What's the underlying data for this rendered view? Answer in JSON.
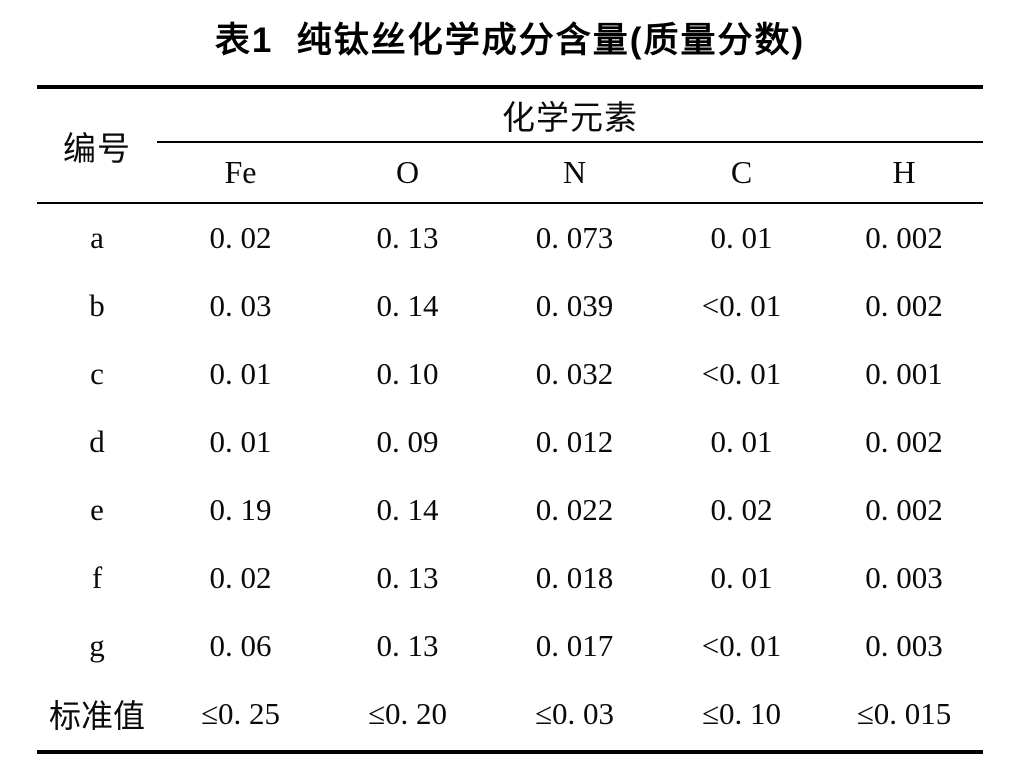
{
  "title": "表1  纯钛丝化学成分含量(质量分数)",
  "table": {
    "id_header": "编号",
    "group_header": "化学元素",
    "columns": [
      "Fe",
      "O",
      "N",
      "C",
      "H"
    ],
    "rows": [
      {
        "label": "a",
        "values": [
          "0. 02",
          "0. 13",
          "0. 073",
          "0. 01",
          "0. 002"
        ]
      },
      {
        "label": "b",
        "values": [
          "0. 03",
          "0. 14",
          "0. 039",
          "<0. 01",
          "0. 002"
        ]
      },
      {
        "label": "c",
        "values": [
          "0. 01",
          "0. 10",
          "0. 032",
          "<0. 01",
          "0. 001"
        ]
      },
      {
        "label": "d",
        "values": [
          "0. 01",
          "0. 09",
          "0. 012",
          "0. 01",
          "0. 002"
        ]
      },
      {
        "label": "e",
        "values": [
          "0. 19",
          "0. 14",
          "0. 022",
          "0. 02",
          "0. 002"
        ]
      },
      {
        "label": "f",
        "values": [
          "0. 02",
          "0. 13",
          "0. 018",
          "0. 01",
          "0. 003"
        ]
      },
      {
        "label": "g",
        "values": [
          "0. 06",
          "0. 13",
          "0. 017",
          "<0. 01",
          "0. 003"
        ]
      },
      {
        "label": "标准值",
        "values": [
          "≤0. 25",
          "≤0. 20",
          "≤0. 03",
          "≤0. 10",
          "≤0. 015"
        ]
      }
    ]
  }
}
